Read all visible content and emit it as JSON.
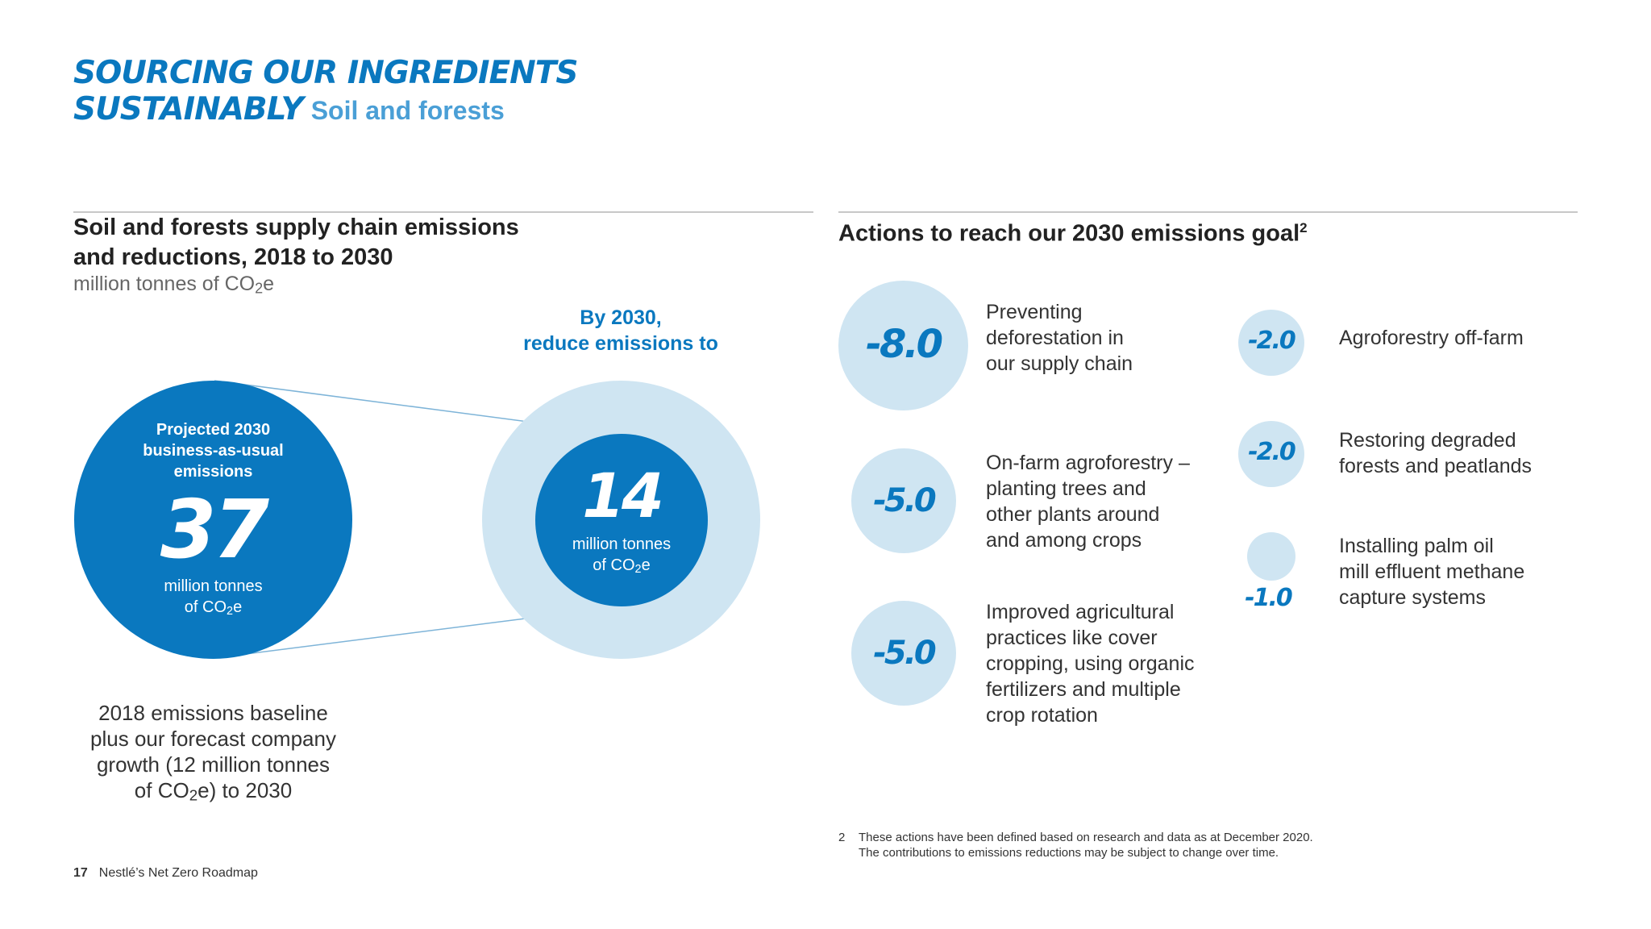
{
  "header": {
    "title_line1": "SOURCING OUR INGREDIENTS",
    "title_line2": "SUSTAINABLY",
    "subtitle": "Soil and forests"
  },
  "left_panel": {
    "title_line1": "Soil and forests supply chain emissions",
    "title_line2": "and reductions, 2018 to 2030",
    "unit_text": "million tonnes of CO",
    "unit_sub": "2",
    "unit_tail": "e",
    "callout_line1": "By 2030,",
    "callout_line2": "reduce emissions to",
    "projected": {
      "label_line1": "Projected 2030",
      "label_line2": "business-as-usual",
      "label_line3": "emissions",
      "value": "37",
      "unit_line1": "million tonnes",
      "unit_line2_pre": "of CO",
      "unit_line2_sub": "2",
      "unit_line2_post": "e"
    },
    "target": {
      "value": "14",
      "unit_line1": "million tonnes",
      "unit_line2_pre": "of CO",
      "unit_line2_sub": "2",
      "unit_line2_post": "e"
    },
    "baseline_line1": "2018 emissions baseline",
    "baseline_line2": "plus our forecast company",
    "baseline_line3": "growth (12 million tonnes",
    "baseline_line4_pre": "of CO",
    "baseline_line4_sub": "2",
    "baseline_line4_post": "e) to 2030"
  },
  "right_panel": {
    "title": "Actions to reach our 2030 emissions goal",
    "title_sup": "2",
    "actions": [
      {
        "value": "-8.0",
        "text": [
          "Preventing",
          "deforestation in",
          "our supply chain"
        ]
      },
      {
        "value": "-5.0",
        "text": [
          "On-farm agroforestry –",
          "planting trees and",
          "other plants around",
          "and among crops"
        ]
      },
      {
        "value": "-5.0",
        "text": [
          "Improved agricultural",
          "practices like cover",
          "cropping, using organic",
          "fertilizers and multiple",
          "crop rotation"
        ]
      },
      {
        "value": "-2.0",
        "text": [
          "Agroforestry off-farm"
        ]
      },
      {
        "value": "-2.0",
        "text": [
          "Restoring degraded",
          "forests and peatlands"
        ]
      },
      {
        "value": "-1.0",
        "text": [
          "Installing palm oil",
          "mill effluent methane",
          "capture systems"
        ]
      }
    ],
    "footnote_number": "2",
    "footnote_line1": "These actions have been defined based on research and data as at December 2020.",
    "footnote_line2": "The contributions to emissions reductions may be subject to change over time."
  },
  "footer": {
    "page_number": "17",
    "doc_title": "Nestlé’s Net Zero Roadmap"
  },
  "colors": {
    "brand_blue": "#0a78bf",
    "light_blue": "#cfe5f2",
    "mid_blue": "#4a9fd6",
    "text_dark": "#222222"
  }
}
